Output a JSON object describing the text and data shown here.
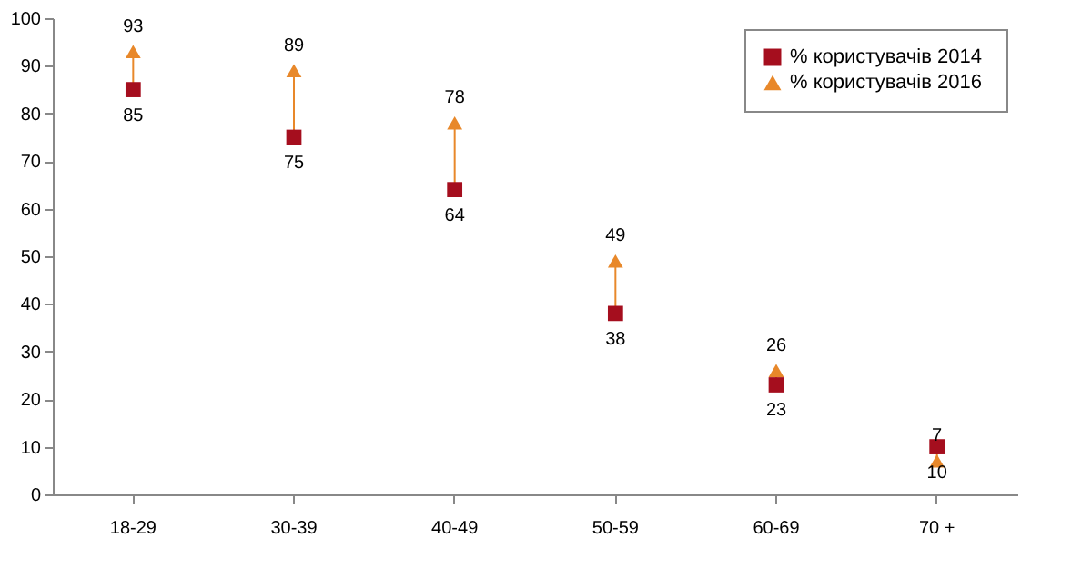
{
  "chart_data": {
    "type": "scatter",
    "categories": [
      "18-29",
      "30-39",
      "40-49",
      "50-59",
      "60-69",
      "70 +"
    ],
    "series": [
      {
        "name": "% користувачів  2014",
        "color": "#a50e1e",
        "marker": "square",
        "values": [
          85,
          75,
          64,
          38,
          23,
          10
        ]
      },
      {
        "name": "% користувачів  2016",
        "color": "#e8882a",
        "marker": "triangle",
        "values": [
          93,
          89,
          78,
          49,
          26,
          7
        ]
      }
    ],
    "ylim": [
      0,
      100
    ],
    "yticks": [
      0,
      10,
      20,
      30,
      40,
      50,
      60,
      70,
      80,
      90,
      100
    ],
    "grid": false,
    "legend": "top right",
    "data_labels": true
  }
}
